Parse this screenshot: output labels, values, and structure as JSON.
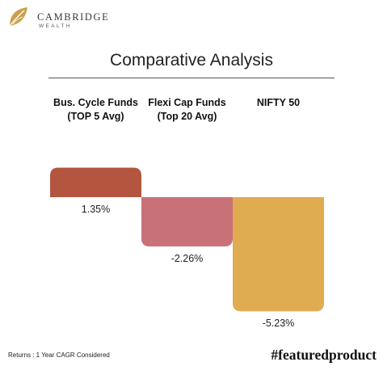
{
  "brand": {
    "name": "CAMBRIDGE",
    "tagline": "WEALTH",
    "logo_icon": "gold-leaf-icon",
    "logo_color": "#c9a24a"
  },
  "footer": {
    "note": "Returns :  1 Year CAGR Considered",
    "hashtag": "#featuredproduct"
  },
  "chart_data": {
    "type": "bar",
    "title": "Comparative Analysis",
    "categories": [
      [
        "Bus. Cycle Funds",
        "(TOP 5 Avg)"
      ],
      [
        "Flexi Cap Funds",
        "(Top 20 Avg)"
      ],
      [
        "NIFTY 50"
      ]
    ],
    "values": [
      1.35,
      -2.26,
      -5.23
    ],
    "value_labels": [
      "1.35%",
      "-2.26%",
      "-5.23%"
    ],
    "colors": [
      "#b4553f",
      "#c97178",
      "#e0ac52"
    ],
    "unit": "%",
    "xlabel": "",
    "ylabel": "",
    "grid": false
  }
}
